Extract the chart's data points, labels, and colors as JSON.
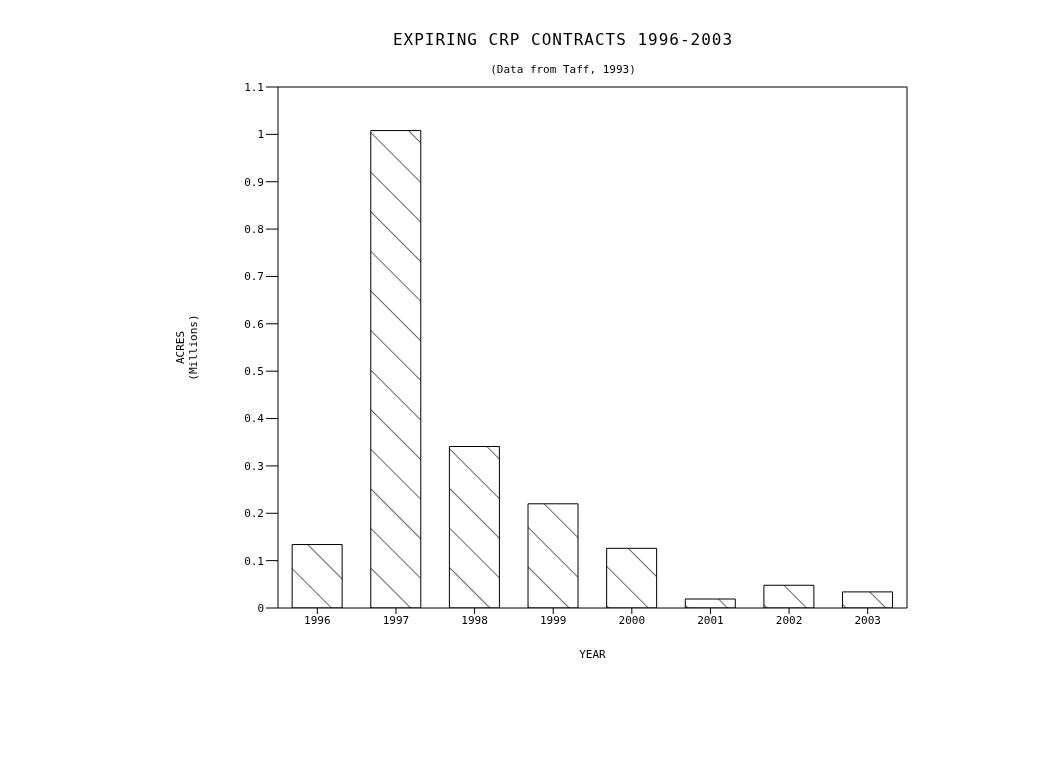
{
  "chart_data": {
    "type": "bar",
    "title": "EXPIRING CRP CONTRACTS 1996-2003",
    "subtitle": "(Data from Taff, 1993)",
    "xlabel": "YEAR",
    "ylabel": "ACRES\n(Millions)",
    "categories": [
      "1996",
      "1997",
      "1998",
      "1999",
      "2000",
      "2001",
      "2002",
      "2003"
    ],
    "values": [
      0.134,
      1.008,
      0.341,
      0.22,
      0.126,
      0.019,
      0.048,
      0.034
    ],
    "color": "#000000",
    "ylim": [
      0,
      1.1
    ],
    "yticks": [
      0,
      0.1,
      0.2,
      0.3,
      0.4,
      0.5,
      0.6,
      0.7,
      0.8,
      0.9,
      1,
      1.1
    ],
    "grid": false
  }
}
